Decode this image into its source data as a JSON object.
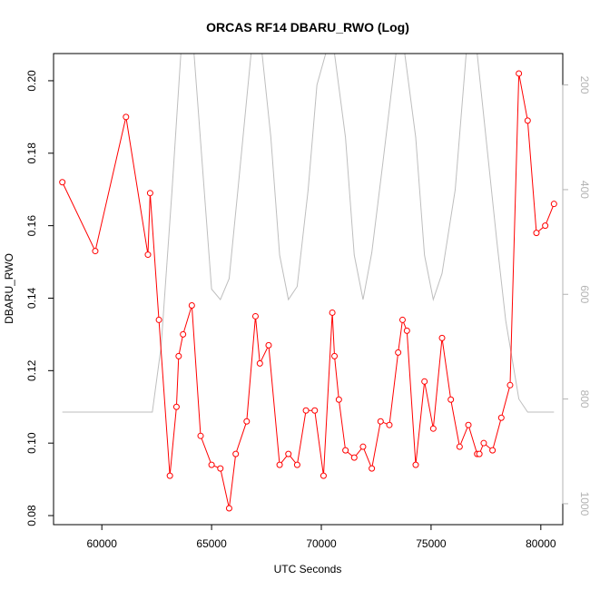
{
  "chart_data": {
    "type": "line",
    "title": "ORCAS RF14 DBARU_RWO (Log)",
    "xlabel": "UTC Seconds",
    "ylabel": "DBARU_RWO",
    "xlim": [
      57800,
      81000
    ],
    "ylim": [
      0.0775,
      0.2075
    ],
    "y2lim": [
      1040,
      140
    ],
    "x_ticks": [
      60000,
      65000,
      70000,
      75000,
      80000
    ],
    "y_ticks": [
      0.08,
      0.1,
      0.12,
      0.14,
      0.16,
      0.18,
      0.2
    ],
    "y2_ticks": [
      200,
      400,
      600,
      800,
      1000
    ],
    "grid": false,
    "colors": {
      "series": "#ff0000",
      "altitude": "#bebebe",
      "axis2": "#b3b3b3"
    },
    "series": [
      {
        "x": [
          58200,
          59700,
          61100,
          62100,
          62200,
          62600,
          63100,
          63400,
          63500,
          63700,
          64100,
          64500,
          65000,
          65400,
          65800,
          66100,
          66600,
          67000,
          67200,
          67600,
          68100,
          68500,
          68900,
          69300,
          69700,
          70100,
          70500,
          70600,
          70800,
          71100,
          71500,
          71900,
          72300,
          72700,
          73100,
          73500,
          73700,
          73900,
          74300,
          74700,
          75100,
          75500,
          75900,
          76300,
          76700,
          77100,
          77200,
          77400,
          77800,
          78200,
          78600,
          79000,
          79400,
          79800,
          80200,
          80600
        ],
        "values": [
          0.172,
          0.153,
          0.19,
          0.152,
          0.169,
          0.134,
          0.091,
          0.11,
          0.124,
          0.13,
          0.138,
          0.102,
          0.094,
          0.093,
          0.082,
          0.097,
          0.106,
          0.135,
          0.122,
          0.127,
          0.094,
          0.097,
          0.094,
          0.109,
          0.109,
          0.091,
          0.136,
          0.124,
          0.112,
          0.098,
          0.096,
          0.099,
          0.093,
          0.106,
          0.105,
          0.125,
          0.134,
          0.131,
          0.094,
          0.117,
          0.104,
          0.129,
          0.112,
          0.099,
          0.105,
          0.097,
          0.097,
          0.1,
          0.098,
          0.107,
          0.116,
          0.202,
          0.189,
          0.158,
          0.16,
          0.166
        ]
      },
      {
        "axis": "right",
        "x": [
          58200,
          62300,
          62700,
          63200,
          63600,
          64200,
          65000,
          65400,
          65800,
          66200,
          66800,
          67300,
          67700,
          68100,
          68500,
          68900,
          69400,
          69800,
          70200,
          70600,
          71100,
          71500,
          71900,
          72300,
          72800,
          73400,
          73800,
          74300,
          74700,
          75100,
          75500,
          76100,
          76600,
          77100,
          77500,
          78000,
          78400,
          79000,
          79400,
          80600
        ],
        "values": [
          825,
          825,
          700,
          400,
          140,
          140,
          590,
          610,
          570,
          400,
          140,
          140,
          300,
          525,
          610,
          585,
          400,
          200,
          140,
          140,
          300,
          525,
          610,
          520,
          350,
          140,
          140,
          300,
          525,
          610,
          560,
          400,
          140,
          140,
          300,
          500,
          650,
          800,
          825,
          825
        ]
      }
    ]
  }
}
